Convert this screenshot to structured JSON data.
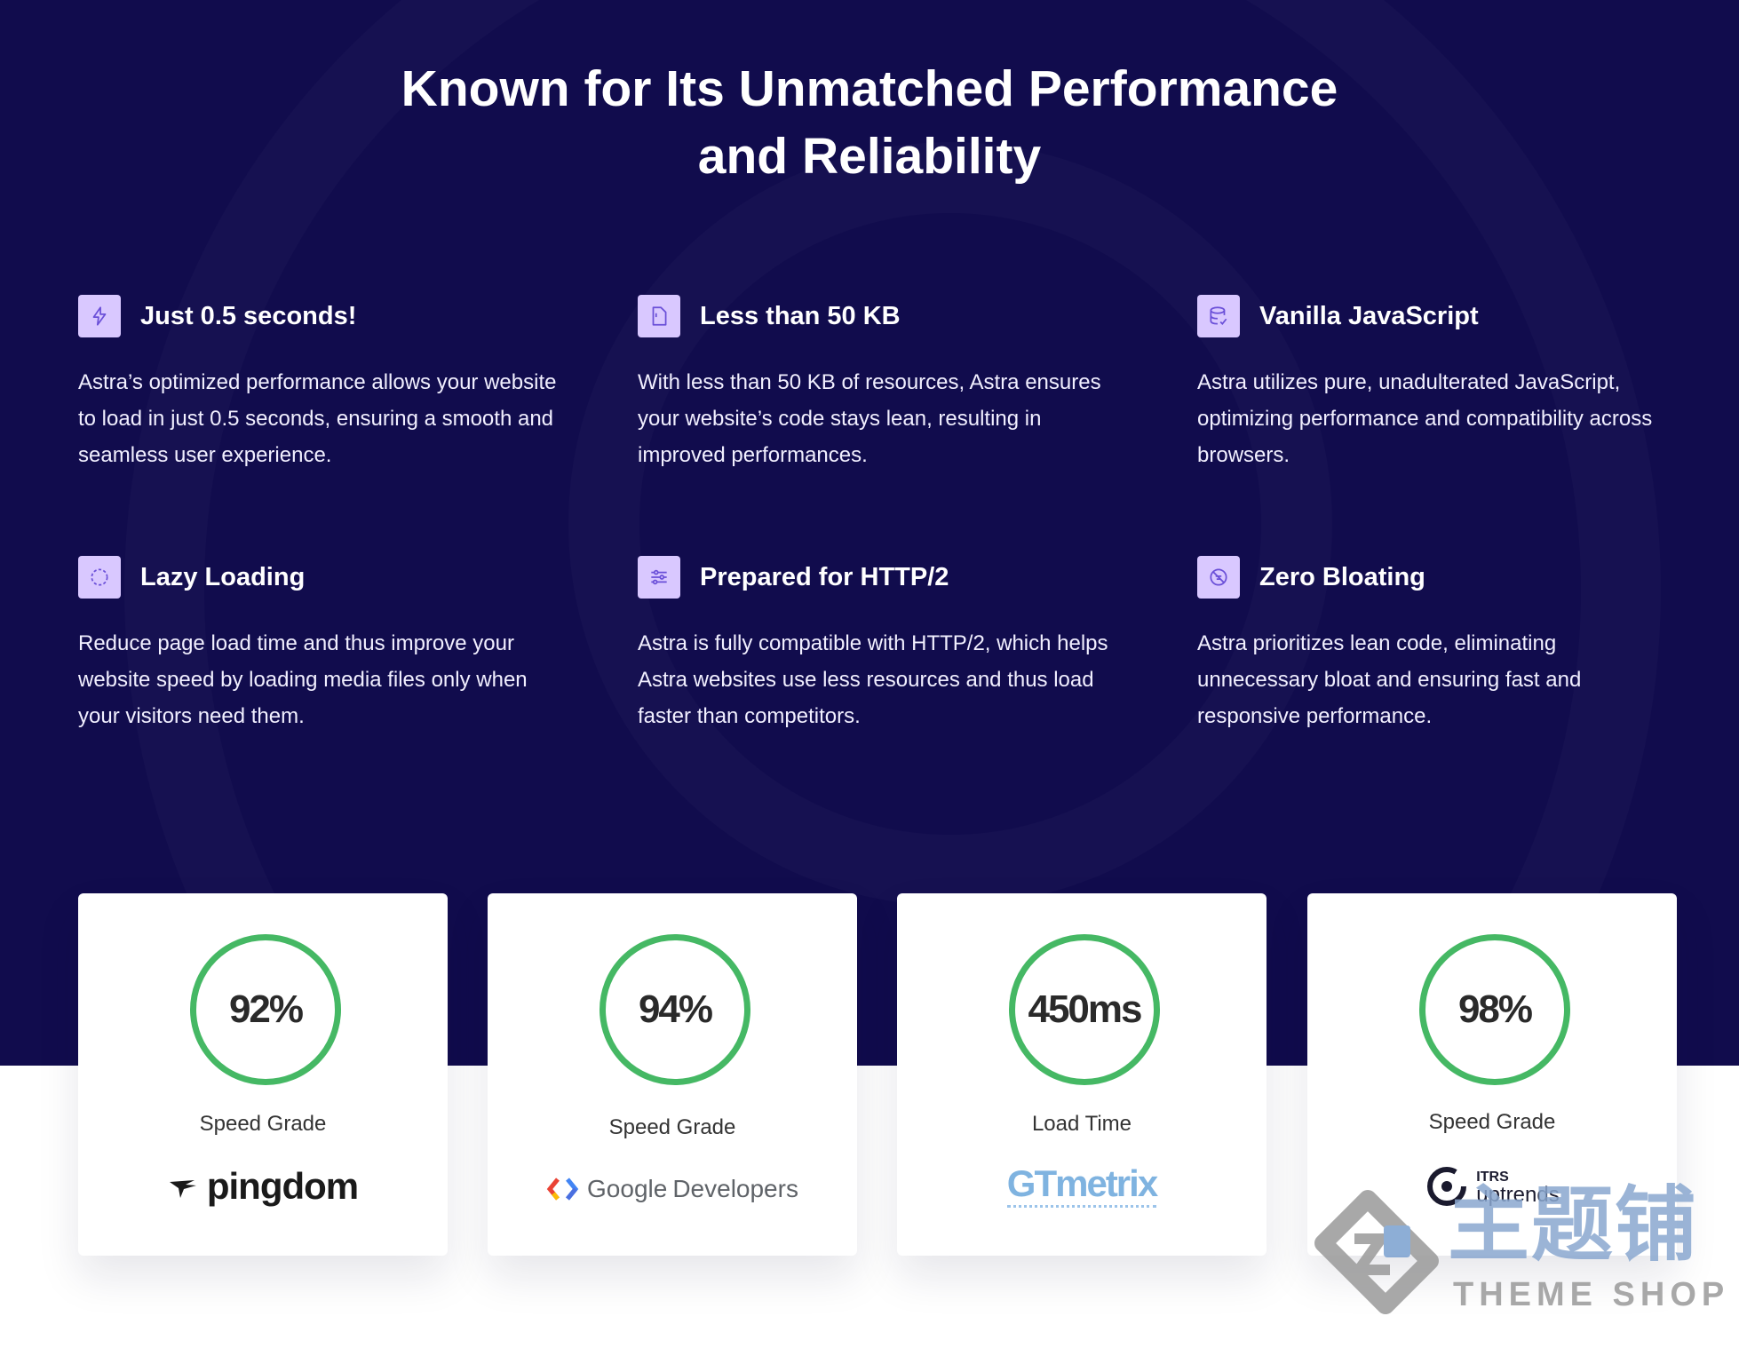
{
  "headline": {
    "line1": "Known for Its Unmatched Performance",
    "line2": "and Reliability"
  },
  "features": [
    {
      "icon": "lightning-icon",
      "title": "Just 0.5 seconds!",
      "desc": "Astra’s optimized performance allows your website to load in just 0.5 seconds, ensuring a smooth and seamless user experience."
    },
    {
      "icon": "file-icon",
      "title": "Less than 50 KB",
      "desc": "With less than 50 KB of resources, Astra ensures your website’s code stays lean, resulting in improved performances."
    },
    {
      "icon": "database-icon",
      "title": "Vanilla JavaScript",
      "desc": "Astra utilizes pure, unadulterated JavaScript, optimizing performance and compatibility across browsers."
    },
    {
      "icon": "loading-circle-icon",
      "title": "Lazy Loading",
      "desc": "Reduce page load time and thus improve your website speed by loading media files only when your visitors need them."
    },
    {
      "icon": "sliders-icon",
      "title": "Prepared for HTTP/2",
      "desc": "Astra is fully compatible with HTTP/2, which helps Astra websites use less resources and thus load faster than competitors."
    },
    {
      "icon": "no-bloat-icon",
      "title": "Zero Bloating",
      "desc": "Astra prioritizes lean code, eliminating unnecessary bloat and ensuring fast and responsive performance."
    }
  ],
  "stats": [
    {
      "value": "92%",
      "label": "Speed Grade",
      "logo": "pingdom"
    },
    {
      "value": "94%",
      "label": "Speed Grade",
      "logo_word": "Google",
      "logo_suffix": "Developers"
    },
    {
      "value": "450ms",
      "label": "Load Time",
      "logo": "GTmetrix"
    },
    {
      "value": "98%",
      "label": "Speed Grade",
      "logo_top": "ITRS",
      "logo_bottom": "uptrends"
    }
  ],
  "watermark": {
    "cn": "主题铺",
    "en": "THEME SHOP"
  },
  "colors": {
    "hero_bg": "#110c4d",
    "icon_bg": "#d9c8ff",
    "gauge": "#45b864"
  }
}
